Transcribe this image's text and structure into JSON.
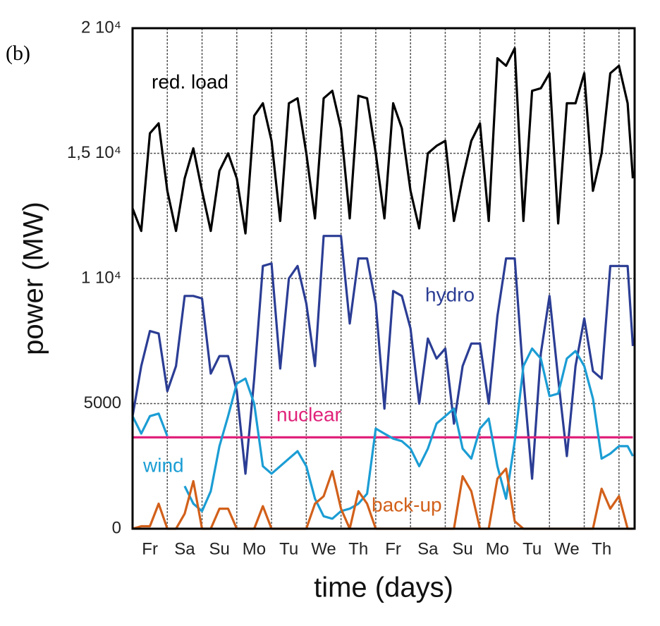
{
  "chart_data": {
    "type": "line",
    "panel_label": "(b)",
    "xlabel": "time (days)",
    "ylabel": "power (MW)",
    "x": [
      0,
      0.25,
      0.5,
      0.75,
      1,
      1.25,
      1.5,
      1.75,
      2,
      2.25,
      2.5,
      2.75,
      3,
      3.25,
      3.5,
      3.75,
      4,
      4.25,
      4.5,
      4.75,
      5,
      5.25,
      5.5,
      5.75,
      6,
      6.25,
      6.5,
      6.75,
      7,
      7.25,
      7.5,
      7.75,
      8,
      8.25,
      8.5,
      8.75,
      9,
      9.25,
      9.5,
      9.75,
      10,
      10.25,
      10.5,
      10.75,
      11,
      11.25,
      11.5,
      11.75,
      12,
      12.25,
      12.5,
      12.75,
      13,
      13.25,
      13.5,
      13.75,
      14,
      14.25,
      14.4
    ],
    "xlim": [
      0,
      14.45
    ],
    "xticks": [
      {
        "value": 0.5,
        "label": "Fr"
      },
      {
        "value": 1.5,
        "label": "Sa"
      },
      {
        "value": 2.5,
        "label": "Su"
      },
      {
        "value": 3.5,
        "label": "Mo"
      },
      {
        "value": 4.5,
        "label": "Tu"
      },
      {
        "value": 5.5,
        "label": "We"
      },
      {
        "value": 6.5,
        "label": "Th"
      },
      {
        "value": 7.5,
        "label": "Fr"
      },
      {
        "value": 8.5,
        "label": "Sa"
      },
      {
        "value": 9.5,
        "label": "Su"
      },
      {
        "value": 10.5,
        "label": "Mo"
      },
      {
        "value": 11.5,
        "label": "Tu"
      },
      {
        "value": 12.5,
        "label": "We"
      },
      {
        "value": 13.5,
        "label": "Th"
      }
    ],
    "ylim": [
      0,
      20000
    ],
    "yticks": [
      0,
      5000,
      {
        "value": 10000,
        "label": "1 10⁴"
      },
      {
        "value": 15000,
        "label": "1,5 10⁴"
      },
      {
        "value": 20000,
        "label": "2 10⁴"
      }
    ],
    "grid": true,
    "series": [
      {
        "name": "red. load",
        "color": "#000000",
        "values": [
          12800,
          11900,
          15800,
          16200,
          13500,
          11900,
          14000,
          15200,
          13500,
          11900,
          14300,
          15000,
          14000,
          11800,
          16500,
          17000,
          15500,
          12300,
          17000,
          17200,
          15000,
          12400,
          17200,
          17500,
          16000,
          12400,
          17300,
          17200,
          15000,
          12400,
          17000,
          16000,
          13500,
          12000,
          15000,
          15300,
          15500,
          12300,
          14000,
          15500,
          16200,
          12300,
          18800,
          18500,
          19200,
          12300,
          17500,
          17600,
          18200,
          12200,
          17000,
          17000,
          18200,
          13500,
          15000,
          18200,
          18500,
          17000,
          14000
        ]
      },
      {
        "name": "hydro",
        "color": "#2b3d94",
        "values": [
          4500,
          6500,
          7900,
          7800,
          5500,
          6500,
          9300,
          9300,
          9200,
          6200,
          6900,
          6900,
          5500,
          2200,
          6000,
          10500,
          10600,
          6400,
          10000,
          10500,
          9000,
          6500,
          11700,
          11700,
          11700,
          8200,
          10800,
          10800,
          9000,
          4800,
          9500,
          9300,
          8000,
          5000,
          7600,
          6800,
          7200,
          4200,
          6500,
          7400,
          7400,
          5000,
          8500,
          10800,
          10800,
          6000,
          2000,
          7000,
          9300,
          6000,
          2900,
          6500,
          8400,
          6300,
          6000,
          10500,
          10500,
          10500,
          7300
        ]
      },
      {
        "name": "nuclear",
        "color": "#e0237a",
        "values": [
          3650,
          3650,
          3650,
          3650,
          3650,
          3650,
          3650,
          3650,
          3650,
          3650,
          3650,
          3650,
          3650,
          3650,
          3650,
          3650,
          3650,
          3650,
          3650,
          3650,
          3650,
          3650,
          3650,
          3650,
          3650,
          3650,
          3650,
          3650,
          3650,
          3650,
          3650,
          3650,
          3650,
          3650,
          3650,
          3650,
          3650,
          3650,
          3650,
          3650,
          3650,
          3650,
          3650,
          3650,
          3650,
          3650,
          3650,
          3650,
          3650,
          3650,
          3650,
          3650,
          3650,
          3650,
          3650,
          3650,
          3650,
          3650,
          3650
        ]
      },
      {
        "name": "wind",
        "color": "#1b9dd4",
        "values": [
          4500,
          3800,
          4500,
          4600,
          3700,
          null,
          1700,
          1000,
          700,
          1500,
          3300,
          4500,
          5800,
          6000,
          5000,
          2500,
          2200,
          2500,
          2800,
          3100,
          2500,
          1200,
          500,
          400,
          700,
          800,
          1000,
          1400,
          4000,
          3800,
          3600,
          3500,
          3200,
          2500,
          3200,
          4200,
          4500,
          4800,
          3200,
          2800,
          4000,
          4400,
          2500,
          1200,
          3500,
          6500,
          7200,
          6800,
          5300,
          5400,
          6800,
          7100,
          6500,
          5200,
          2800,
          3000,
          3300,
          3300,
          2900
        ]
      },
      {
        "name": "back-up",
        "color": "#d2601a",
        "values": [
          0,
          100,
          100,
          1000,
          0,
          0,
          600,
          1900,
          0,
          0,
          800,
          800,
          0,
          0,
          0,
          900,
          0,
          0,
          0,
          0,
          0,
          1000,
          1300,
          2300,
          800,
          0,
          1500,
          1000,
          0,
          0,
          0,
          0,
          0,
          0,
          0,
          0,
          0,
          0,
          2100,
          1500,
          0,
          0,
          2000,
          2400,
          300,
          0,
          0,
          0,
          0,
          0,
          0,
          0,
          0,
          0,
          1600,
          800,
          1300,
          0,
          0
        ]
      }
    ]
  }
}
